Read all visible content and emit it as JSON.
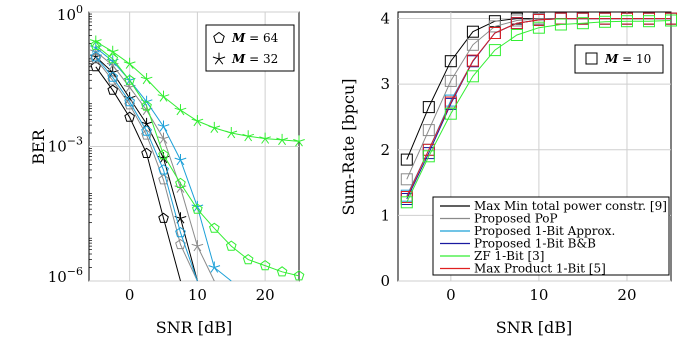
{
  "chart_data": [
    {
      "type": "line",
      "scale": "log",
      "xlabel": "SNR [dB]",
      "ylabel": "BER",
      "xlim": [
        -6,
        25
      ],
      "ylim": [
        1e-06,
        1
      ],
      "xticks": [
        0,
        10,
        20
      ],
      "xtick_labels": [
        "0",
        "10",
        "20"
      ],
      "yticks": [
        1e-06,
        0.001,
        1
      ],
      "ytick_labels_base": [
        "10",
        "10",
        "10"
      ],
      "ytick_labels_exp": [
        "−6",
        "−3",
        "0"
      ],
      "grid": true,
      "legend": {
        "placement": "top-right",
        "entries": [
          {
            "marker": "pentagon",
            "label": "M",
            "value": "= 64"
          },
          {
            "marker": "star",
            "label": "M",
            "value": "= 32"
          }
        ]
      },
      "series": [
        {
          "method": 0,
          "marker": "pentagon",
          "color": "#000000",
          "x": [
            -5,
            -2.5,
            0,
            2.5,
            5,
            7.5
          ],
          "y": [
            0.06,
            0.018,
            0.0045,
            0.0007,
            2.5e-05,
            8e-07
          ]
        },
        {
          "method": 0,
          "marker": "star",
          "color": "#000000",
          "x": [
            -5,
            -2.5,
            0,
            2.5,
            5,
            7.5,
            10
          ],
          "y": [
            0.1,
            0.045,
            0.012,
            0.0032,
            0.00055,
            2.5e-05,
            6e-07
          ]
        },
        {
          "method": 1,
          "marker": "pentagon",
          "color": "#8a8a8a",
          "x": [
            -5,
            -2.5,
            0,
            2.5,
            5,
            7.5,
            10
          ],
          "y": [
            0.09,
            0.03,
            0.0085,
            0.0018,
            0.00018,
            6.5e-06,
            4e-07
          ]
        },
        {
          "method": 1,
          "marker": "star",
          "color": "#8a8a8a",
          "x": [
            -5,
            -2.5,
            0,
            2.5,
            5,
            7.5,
            10,
            12.5
          ],
          "y": [
            0.13,
            0.065,
            0.021,
            0.0065,
            0.0015,
            0.00012,
            6e-06,
            4e-07
          ]
        },
        {
          "method": 2,
          "marker": "pentagon",
          "color": "#1ca0d8",
          "x": [
            -5,
            -2.5,
            0,
            2.5,
            5,
            7.5,
            10
          ],
          "y": [
            0.1,
            0.035,
            0.01,
            0.0022,
            0.0003,
            1.2e-05,
            6e-07
          ]
        },
        {
          "method": 2,
          "marker": "star",
          "color": "#1ca0d8",
          "x": [
            -5,
            -2.5,
            0,
            2.5,
            5,
            7.5,
            10,
            12.5,
            15
          ],
          "y": [
            0.16,
            0.08,
            0.03,
            0.01,
            0.0028,
            0.0005,
            4.5e-05,
            2e-06,
            4e-07
          ]
        },
        {
          "method": 3,
          "marker": "pentagon",
          "color": "#33ee33",
          "x": [
            -5,
            -2.5,
            0,
            2.5,
            5,
            7.5,
            10,
            12.5,
            15,
            17.5,
            20,
            22.5,
            25
          ],
          "y": [
            0.18,
            0.09,
            0.03,
            0.008,
            0.00065,
            0.00015,
            4e-05,
            1.5e-05,
            6e-06,
            3e-06,
            2.2e-06,
            1.6e-06,
            1.3e-06
          ]
        },
        {
          "method": 3,
          "marker": "star",
          "color": "#33ee33",
          "x": [
            -5,
            -2.5,
            0,
            2.5,
            5,
            7.5,
            10,
            12.5,
            15,
            17.5,
            20,
            22.5,
            25
          ],
          "y": [
            0.22,
            0.13,
            0.07,
            0.032,
            0.013,
            0.0065,
            0.0037,
            0.0026,
            0.002,
            0.0017,
            0.0015,
            0.0014,
            0.0013
          ]
        }
      ]
    },
    {
      "type": "line",
      "xlabel": "SNR [dB]",
      "ylabel": "Sum-Rate [bpcu]",
      "xlim": [
        -6,
        25
      ],
      "ylim": [
        0,
        4.1
      ],
      "xticks": [
        0,
        10,
        20
      ],
      "xtick_labels": [
        "0",
        "10",
        "20"
      ],
      "yticks": [
        0,
        1,
        2,
        3,
        4
      ],
      "ytick_labels": [
        "0",
        "1",
        "2",
        "3",
        "4"
      ],
      "grid": true,
      "annotation": {
        "marker": "square",
        "label": "M",
        "value": "= 10"
      },
      "legend": {
        "placement": "bottom-right",
        "entries": [
          {
            "label": "Max Min total power constr. [9]",
            "color": "#000000"
          },
          {
            "label": "Proposed PoP",
            "color": "#8a8a8a"
          },
          {
            "label": "Proposed 1-Bit Approx.",
            "color": "#1ca0d8"
          },
          {
            "label": "Proposed 1-Bit B&B",
            "color": "#1a1aa0"
          },
          {
            "label": "ZF 1-Bit [3]",
            "color": "#33ee33"
          },
          {
            "label": "Max Product 1-Bit [5]",
            "color": "#e02020"
          }
        ]
      },
      "x": [
        -5,
        -2.5,
        0,
        2.5,
        5,
        7.5,
        10,
        12.5,
        15,
        17.5,
        20,
        22.5,
        25
      ],
      "series": [
        {
          "method": 0,
          "color": "#000000",
          "values": [
            1.85,
            2.65,
            3.35,
            3.8,
            3.96,
            4.0,
            4.0,
            4.0,
            4.0,
            4.0,
            4.0,
            4.0,
            4.0
          ]
        },
        {
          "method": 1,
          "color": "#8a8a8a",
          "values": [
            1.55,
            2.3,
            3.05,
            3.6,
            3.88,
            3.97,
            4.0,
            4.0,
            4.0,
            4.0,
            4.0,
            4.0,
            4.0
          ]
        },
        {
          "method": 2,
          "color": "#1ca0d8",
          "values": [
            1.3,
            2.0,
            2.75,
            3.35,
            3.78,
            3.93,
            3.98,
            4.0,
            4.0,
            4.0,
            4.0,
            4.0,
            4.0
          ]
        },
        {
          "method": 4,
          "color": "#1a1aa0",
          "values": [
            1.25,
            1.95,
            2.7,
            3.35,
            3.78,
            3.93,
            3.98,
            4.0,
            4.0,
            4.0,
            4.0,
            4.0,
            4.0
          ]
        },
        {
          "method": 5,
          "color": "#e02020",
          "values": [
            1.28,
            2.0,
            2.72,
            3.36,
            3.78,
            3.93,
            3.98,
            4.0,
            4.0,
            4.0,
            4.0,
            4.0,
            4.0
          ]
        },
        {
          "method": 3,
          "color": "#33ee33",
          "values": [
            1.2,
            1.9,
            2.55,
            3.12,
            3.52,
            3.75,
            3.86,
            3.91,
            3.93,
            3.95,
            3.96,
            3.96,
            3.97
          ]
        }
      ]
    }
  ]
}
